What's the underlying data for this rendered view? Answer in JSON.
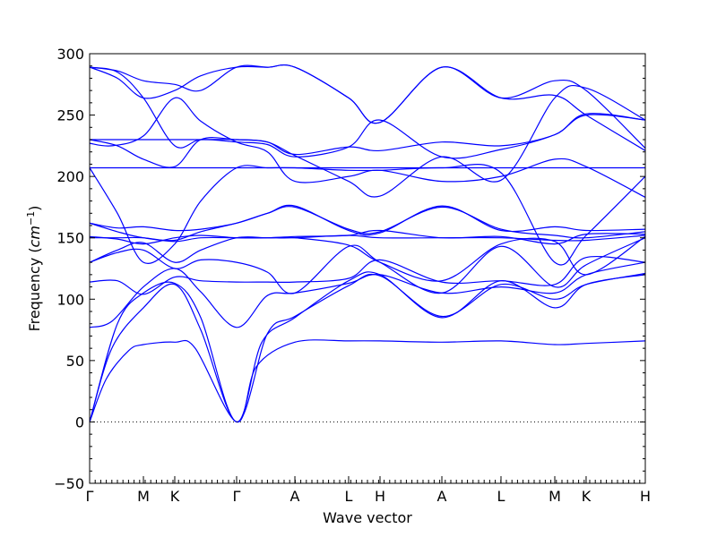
{
  "chart_data": {
    "type": "line",
    "title": "",
    "xlabel": "Wave vector",
    "ylabel": "Frequency (cm⁻¹)",
    "ylabel_prefix": "Frequency (",
    "ylabel_unit": "cm",
    "ylabel_exp": "−1",
    "ylabel_suffix": ")",
    "ylim": [
      -50,
      300
    ],
    "yticks": [
      -50,
      0,
      50,
      100,
      150,
      200,
      250,
      300
    ],
    "ytick_labels": [
      "−50",
      "0",
      "50",
      "100",
      "150",
      "200",
      "250",
      "300"
    ],
    "xlim": [
      0,
      1
    ],
    "xticks": [
      {
        "label": "Γ",
        "x": 0.0
      },
      {
        "label": "M",
        "x": 0.0968
      },
      {
        "label": "K",
        "x": 0.1532
      },
      {
        "label": "Γ",
        "x": 0.2645
      },
      {
        "label": "A",
        "x": 0.3694
      },
      {
        "label": "L",
        "x": 0.4661
      },
      {
        "label": "H",
        "x": 0.5226
      },
      {
        "label": "A",
        "x": 0.6339
      },
      {
        "label": "L",
        "x": 0.7403
      },
      {
        "label": "M",
        "x": 0.8371
      },
      {
        "label": "K",
        "x": 0.8935
      },
      {
        "label": "H",
        "x": 1.0
      }
    ],
    "zero_line": true,
    "series_color": "#0000ff",
    "series": [
      {
        "points": [
          [
            0,
            0
          ],
          [
            0.03,
            35
          ],
          [
            0.07,
            58
          ],
          [
            0.0968,
            63
          ],
          [
            0.1532,
            65
          ],
          [
            0.19,
            60
          ],
          [
            0.2645,
            0
          ],
          [
            0.3,
            45
          ],
          [
            0.3694,
            65
          ],
          [
            0.4661,
            66
          ],
          [
            0.5226,
            66
          ],
          [
            0.6339,
            65
          ],
          [
            0.7403,
            66
          ],
          [
            0.8371,
            63
          ],
          [
            0.8935,
            64
          ],
          [
            1.0,
            66
          ]
        ]
      },
      {
        "points": [
          [
            0,
            0
          ],
          [
            0.04,
            60
          ],
          [
            0.0968,
            93
          ],
          [
            0.1532,
            112
          ],
          [
            0.2,
            75
          ],
          [
            0.2645,
            0
          ],
          [
            0.31,
            65
          ],
          [
            0.3694,
            85
          ],
          [
            0.4661,
            115
          ],
          [
            0.5226,
            120
          ],
          [
            0.6339,
            85
          ],
          [
            0.7403,
            115
          ],
          [
            0.8371,
            93
          ],
          [
            0.8935,
            112
          ],
          [
            1.0,
            120
          ]
        ]
      },
      {
        "points": [
          [
            0,
            0
          ],
          [
            0.05,
            80
          ],
          [
            0.0968,
            105
          ],
          [
            0.1532,
            113
          ],
          [
            0.2,
            85
          ],
          [
            0.2645,
            0
          ],
          [
            0.32,
            72
          ],
          [
            0.3694,
            86
          ],
          [
            0.4661,
            111
          ],
          [
            0.5226,
            119
          ],
          [
            0.6339,
            86
          ],
          [
            0.7403,
            112
          ],
          [
            0.8371,
            100
          ],
          [
            0.8935,
            112
          ],
          [
            1.0,
            121
          ]
        ]
      },
      {
        "points": [
          [
            0,
            77
          ],
          [
            0.04,
            82
          ],
          [
            0.0968,
            110
          ],
          [
            0.1532,
            125
          ],
          [
            0.2,
            106
          ],
          [
            0.2645,
            77
          ],
          [
            0.32,
            103
          ],
          [
            0.3694,
            105
          ],
          [
            0.4661,
            113
          ],
          [
            0.5226,
            120
          ],
          [
            0.6339,
            105
          ],
          [
            0.7403,
            110
          ],
          [
            0.8371,
            105
          ],
          [
            0.8935,
            120
          ],
          [
            1.0,
            130
          ]
        ]
      },
      {
        "points": [
          [
            0,
            114
          ],
          [
            0.05,
            115
          ],
          [
            0.0968,
            104
          ],
          [
            0.1532,
            118
          ],
          [
            0.2,
            115
          ],
          [
            0.2645,
            114
          ],
          [
            0.32,
            114
          ],
          [
            0.3694,
            114
          ],
          [
            0.4661,
            117
          ],
          [
            0.5226,
            132
          ],
          [
            0.6339,
            114
          ],
          [
            0.7403,
            115
          ],
          [
            0.8371,
            112
          ],
          [
            0.8935,
            134
          ],
          [
            1.0,
            130
          ]
        ]
      },
      {
        "points": [
          [
            0,
            130
          ],
          [
            0.05,
            138
          ],
          [
            0.0968,
            140
          ],
          [
            0.1532,
            125
          ],
          [
            0.2,
            132
          ],
          [
            0.2645,
            130
          ],
          [
            0.32,
            122
          ],
          [
            0.3694,
            105
          ],
          [
            0.4661,
            143
          ],
          [
            0.5226,
            130
          ],
          [
            0.6339,
            105
          ],
          [
            0.7403,
            143
          ],
          [
            0.8371,
            110
          ],
          [
            0.8935,
            128
          ],
          [
            1.0,
            150
          ]
        ]
      },
      {
        "points": [
          [
            0,
            130
          ],
          [
            0.05,
            140
          ],
          [
            0.0968,
            146
          ],
          [
            0.1532,
            130
          ],
          [
            0.2,
            140
          ],
          [
            0.2645,
            150
          ],
          [
            0.32,
            150
          ],
          [
            0.3694,
            150
          ],
          [
            0.4661,
            144
          ],
          [
            0.5226,
            130
          ],
          [
            0.6339,
            115
          ],
          [
            0.7403,
            145
          ],
          [
            0.8371,
            147
          ],
          [
            0.8935,
            120
          ],
          [
            1.0,
            151
          ]
        ]
      },
      {
        "points": [
          [
            0,
            150
          ],
          [
            0.05,
            150
          ],
          [
            0.0968,
            150
          ],
          [
            0.1532,
            147
          ],
          [
            0.2,
            150
          ],
          [
            0.2645,
            150
          ],
          [
            0.32,
            150
          ],
          [
            0.3694,
            150
          ],
          [
            0.4661,
            152
          ],
          [
            0.5226,
            150
          ],
          [
            0.6339,
            150
          ],
          [
            0.7403,
            150
          ],
          [
            0.8371,
            148
          ],
          [
            0.8935,
            148
          ],
          [
            1.0,
            152
          ]
        ]
      },
      {
        "points": [
          [
            0,
            151
          ],
          [
            0.05,
            149
          ],
          [
            0.0968,
            145
          ],
          [
            0.1532,
            150
          ],
          [
            0.2,
            152
          ],
          [
            0.2645,
            150
          ],
          [
            0.32,
            150
          ],
          [
            0.3694,
            151
          ],
          [
            0.4661,
            152
          ],
          [
            0.5226,
            156
          ],
          [
            0.6339,
            150
          ],
          [
            0.7403,
            151
          ],
          [
            0.8371,
            145
          ],
          [
            0.8935,
            153
          ],
          [
            1.0,
            153
          ]
        ]
      },
      {
        "points": [
          [
            0,
            162
          ],
          [
            0.05,
            155
          ],
          [
            0.0968,
            150
          ],
          [
            0.1532,
            148
          ],
          [
            0.2,
            155
          ],
          [
            0.2645,
            162
          ],
          [
            0.32,
            170
          ],
          [
            0.3694,
            175
          ],
          [
            0.4661,
            157
          ],
          [
            0.5226,
            155
          ],
          [
            0.6339,
            175
          ],
          [
            0.7403,
            157
          ],
          [
            0.8371,
            152
          ],
          [
            0.8935,
            150
          ],
          [
            1.0,
            155
          ]
        ]
      },
      {
        "points": [
          [
            0,
            162
          ],
          [
            0.05,
            158
          ],
          [
            0.0968,
            159
          ],
          [
            0.1532,
            156
          ],
          [
            0.2,
            157
          ],
          [
            0.2645,
            162
          ],
          [
            0.32,
            170
          ],
          [
            0.3694,
            176
          ],
          [
            0.4661,
            156
          ],
          [
            0.5226,
            154
          ],
          [
            0.6339,
            176
          ],
          [
            0.7403,
            156
          ],
          [
            0.8371,
            159
          ],
          [
            0.8935,
            156
          ],
          [
            1.0,
            157
          ]
        ]
      },
      {
        "points": [
          [
            0,
            207
          ],
          [
            0.05,
            170
          ],
          [
            0.0968,
            130
          ],
          [
            0.1532,
            145
          ],
          [
            0.2,
            180
          ],
          [
            0.2645,
            207
          ],
          [
            0.32,
            207
          ],
          [
            0.3694,
            207
          ],
          [
            0.4661,
            205
          ],
          [
            0.5226,
            205
          ],
          [
            0.6339,
            207
          ],
          [
            0.7403,
            203
          ],
          [
            0.8371,
            130
          ],
          [
            0.8935,
            152
          ],
          [
            1.0,
            200
          ]
        ]
      },
      {
        "points": [
          [
            0,
            207
          ],
          [
            0.05,
            207
          ],
          [
            0.0968,
            207
          ],
          [
            0.1532,
            207
          ],
          [
            0.2,
            207
          ],
          [
            0.2645,
            207
          ],
          [
            0.32,
            207
          ],
          [
            0.3694,
            207
          ],
          [
            0.4661,
            207
          ],
          [
            0.5226,
            207
          ],
          [
            0.6339,
            207
          ],
          [
            0.7403,
            207
          ],
          [
            0.8371,
            207
          ],
          [
            0.8935,
            207
          ],
          [
            1.0,
            207
          ]
        ]
      },
      {
        "points": [
          [
            0,
            227
          ],
          [
            0.04,
            225
          ],
          [
            0.0968,
            233
          ],
          [
            0.1532,
            264
          ],
          [
            0.2,
            245
          ],
          [
            0.2645,
            228
          ],
          [
            0.32,
            220
          ],
          [
            0.3694,
            196
          ],
          [
            0.4661,
            200
          ],
          [
            0.5226,
            205
          ],
          [
            0.6339,
            196
          ],
          [
            0.7403,
            200
          ],
          [
            0.8371,
            214
          ],
          [
            0.8935,
            208
          ],
          [
            1.0,
            183
          ]
        ]
      },
      {
        "points": [
          [
            0,
            230
          ],
          [
            0.05,
            225
          ],
          [
            0.0968,
            214
          ],
          [
            0.1532,
            208
          ],
          [
            0.2,
            230
          ],
          [
            0.2645,
            230
          ],
          [
            0.32,
            228
          ],
          [
            0.3694,
            217
          ],
          [
            0.4661,
            196
          ],
          [
            0.5226,
            184
          ],
          [
            0.6339,
            216
          ],
          [
            0.7403,
            197
          ],
          [
            0.8371,
            264
          ],
          [
            0.8935,
            272
          ],
          [
            1.0,
            246
          ]
        ]
      },
      {
        "points": [
          [
            0,
            230
          ],
          [
            0.05,
            230
          ],
          [
            0.0968,
            230
          ],
          [
            0.1532,
            230
          ],
          [
            0.2,
            230
          ],
          [
            0.2645,
            230
          ],
          [
            0.32,
            228
          ],
          [
            0.3694,
            218
          ],
          [
            0.4661,
            224
          ],
          [
            0.5226,
            221
          ],
          [
            0.6339,
            228
          ],
          [
            0.7403,
            225
          ],
          [
            0.8371,
            234
          ],
          [
            0.8935,
            251
          ],
          [
            1.0,
            246
          ]
        ]
      },
      {
        "points": [
          [
            0,
            289
          ],
          [
            0.05,
            280
          ],
          [
            0.0968,
            264
          ],
          [
            0.1532,
            270
          ],
          [
            0.2,
            282
          ],
          [
            0.2645,
            289
          ],
          [
            0.32,
            289
          ],
          [
            0.3694,
            289
          ],
          [
            0.4661,
            264
          ],
          [
            0.5226,
            244
          ],
          [
            0.6339,
            289
          ],
          [
            0.7403,
            264
          ],
          [
            0.8371,
            266
          ],
          [
            0.8935,
            250
          ],
          [
            1.0,
            221
          ]
        ]
      },
      {
        "points": [
          [
            0,
            289
          ],
          [
            0.05,
            286
          ],
          [
            0.0968,
            278
          ],
          [
            0.1532,
            275
          ],
          [
            0.2,
            270
          ],
          [
            0.2645,
            289
          ],
          [
            0.32,
            289
          ],
          [
            0.3694,
            289
          ],
          [
            0.4661,
            264
          ],
          [
            0.5226,
            244
          ],
          [
            0.6339,
            289
          ],
          [
            0.7403,
            264
          ],
          [
            0.8371,
            278
          ],
          [
            0.8935,
            270
          ],
          [
            1.0,
            223
          ]
        ]
      },
      {
        "points": [
          [
            0,
            289
          ],
          [
            0.05,
            285
          ],
          [
            0.0968,
            264
          ],
          [
            0.1532,
            225
          ],
          [
            0.2,
            230
          ],
          [
            0.2645,
            228
          ],
          [
            0.32,
            226
          ],
          [
            0.3694,
            216
          ],
          [
            0.4661,
            224
          ],
          [
            0.5226,
            246
          ],
          [
            0.6339,
            216
          ],
          [
            0.7403,
            222
          ],
          [
            0.8371,
            234
          ],
          [
            0.8935,
            250
          ],
          [
            1.0,
            246
          ]
        ]
      }
    ]
  }
}
